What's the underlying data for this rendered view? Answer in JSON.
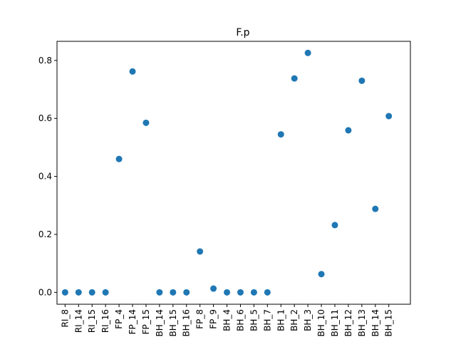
{
  "chart_data": {
    "type": "scatter",
    "title": "F.p",
    "xlabel": "",
    "ylabel": "",
    "ylim": [
      -0.041,
      0.866
    ],
    "yticks": [
      "0.0",
      "0.2",
      "0.4",
      "0.6",
      "0.8"
    ],
    "grid": false,
    "point_color": "#1f77b4",
    "categories": [
      "RI_8",
      "RI_14",
      "RI_15",
      "RI_16",
      "FP_4",
      "FP_14",
      "FP_15",
      "BH_14",
      "BH_15",
      "BH_16",
      "FP_8",
      "FP_9",
      "BH_4",
      "BH_6",
      "BH_5",
      "BH_7",
      "BH_1",
      "BH_2",
      "BH_3",
      "BH_10",
      "BH_11",
      "BH_12",
      "BH_13",
      "BH_14",
      "BH_15"
    ],
    "values": [
      0.0,
      0.0,
      0.0,
      0.0,
      0.46,
      0.762,
      0.585,
      0.0,
      0.0,
      0.0,
      0.141,
      0.013,
      0.0,
      0.0,
      0.0,
      0.0,
      0.545,
      0.738,
      0.826,
      0.063,
      0.232,
      0.559,
      0.73,
      0.288,
      0.608
    ]
  }
}
